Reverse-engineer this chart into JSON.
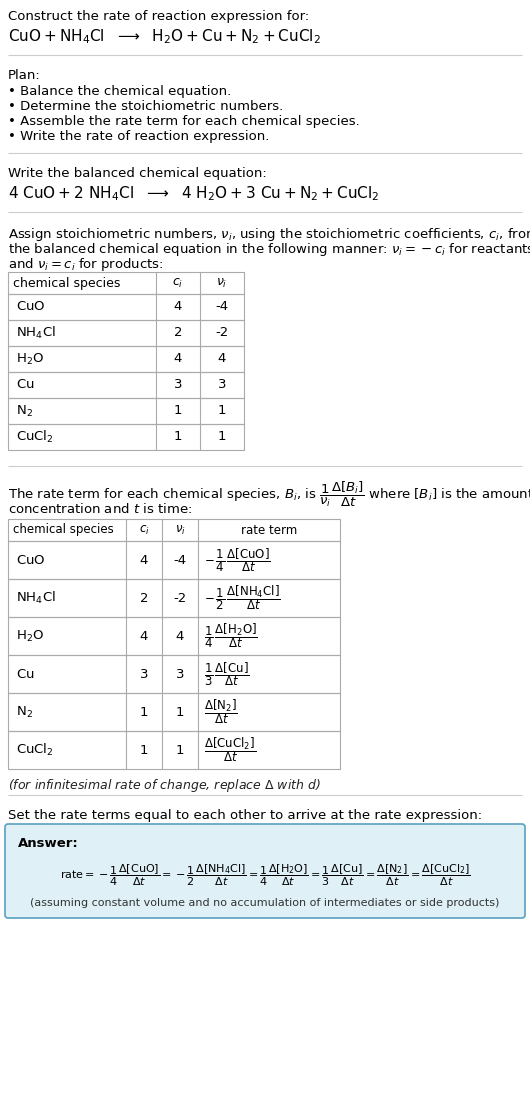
{
  "bg_color": "#ffffff",
  "answer_box_color": "#dff0f7",
  "answer_border_color": "#5aa0c0",
  "table_border_color": "#aaaaaa",
  "separator_color": "#cccccc",
  "species_math": [
    "$\\mathregular{CuO}$",
    "$\\mathregular{NH_4Cl}$",
    "$\\mathregular{H_2O}$",
    "$\\mathregular{Cu}$",
    "$\\mathregular{N_2}$",
    "$\\mathregular{CuCl_2}$"
  ],
  "ci_vals": [
    "4",
    "2",
    "4",
    "3",
    "1",
    "1"
  ],
  "nu_vals": [
    "-4",
    "-2",
    "4",
    "3",
    "1",
    "1"
  ]
}
